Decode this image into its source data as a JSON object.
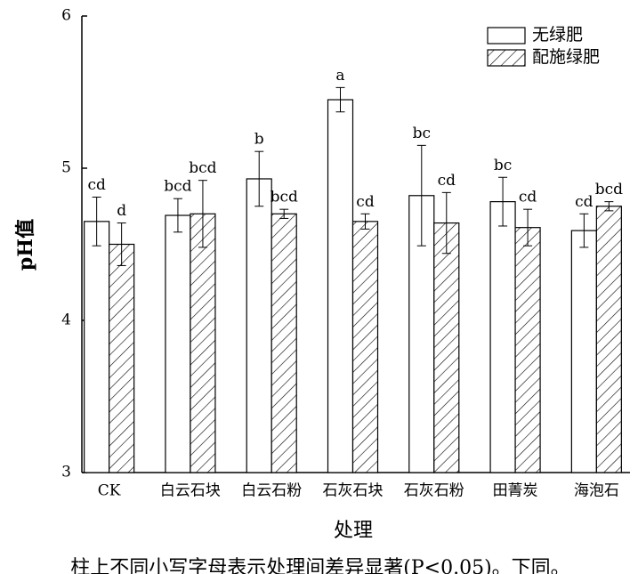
{
  "chart_data": {
    "type": "bar",
    "y_label": "pH值",
    "x_label": "处理",
    "note": "柱上不同小写字母表示处理间差异显著(P<0.05)。下同。",
    "categories": [
      "CK",
      "白云石块",
      "白云石粉",
      "石灰石块",
      "石灰石粉",
      "田菁炭",
      "海泡石"
    ],
    "series": [
      {
        "name": "无绿肥",
        "color": "#ffffff",
        "hatch": false,
        "values": [
          4.65,
          4.69,
          4.93,
          5.45,
          4.82,
          4.78,
          4.59
        ],
        "errors": [
          0.16,
          0.11,
          0.18,
          0.08,
          0.33,
          0.16,
          0.11
        ],
        "annotations": [
          "cd",
          "bcd",
          "b",
          "a",
          "bc",
          "bc",
          "cd"
        ]
      },
      {
        "name": "配施绿肥",
        "color": "#ffffff",
        "hatch": true,
        "values": [
          4.5,
          4.7,
          4.7,
          4.65,
          4.64,
          4.61,
          4.75
        ],
        "errors": [
          0.14,
          0.22,
          0.03,
          0.05,
          0.2,
          0.12,
          0.03
        ],
        "annotations": [
          "d",
          "bcd",
          "bcd",
          "cd",
          "cd",
          "cd",
          "bcd"
        ]
      }
    ],
    "ylim": [
      3,
      6
    ],
    "yticks": [
      3,
      4,
      5,
      6
    ],
    "legend": "upper right"
  }
}
